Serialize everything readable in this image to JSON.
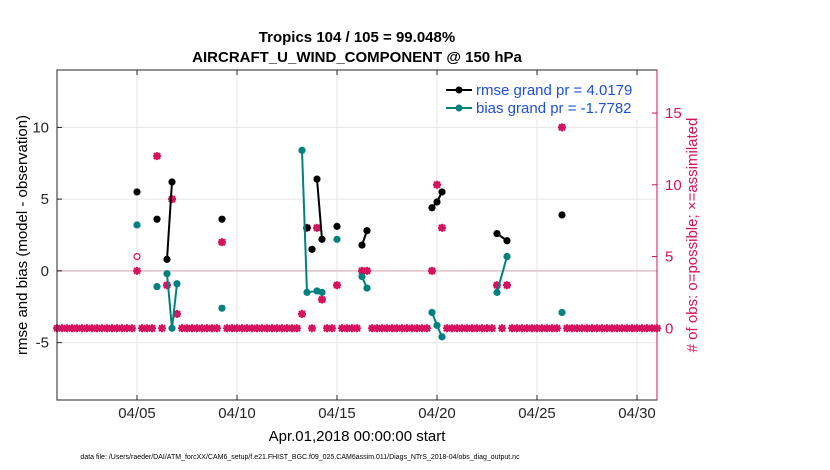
{
  "chart_data": {
    "type": "scatter",
    "title_line1": "Tropics 104 / 105 = 99.048%",
    "title_line2": "AIRCRAFT_U_WIND_COMPONENT @ 150 hPa",
    "xlabel": "Apr.01,2018 00:00:00 start",
    "ylabel_left": "rmse and bias (model - observation)",
    "ylabel_right": "# of obs: o=possible; ×=assimilated",
    "xlim": [
      1,
      31
    ],
    "ylim_left": [
      -9,
      14
    ],
    "ylim_right": [
      -5,
      18
    ],
    "x_ticks": [
      5,
      10,
      15,
      20,
      25,
      30
    ],
    "x_tick_labels": [
      "04/05",
      "04/10",
      "04/15",
      "04/20",
      "04/25",
      "04/30"
    ],
    "y_ticks_left": [
      -5,
      0,
      5,
      10
    ],
    "y_tick_labels_left": [
      "-5",
      "0",
      "5",
      "10"
    ],
    "y_ticks_right": [
      0,
      5,
      10,
      15
    ],
    "y_tick_labels_right": [
      "0",
      "5",
      "10",
      "15"
    ],
    "grid": true,
    "legend": [
      "rmse grand pr = 4.0179",
      "bias grand pr = -1.7782"
    ],
    "legend_position": "top-right",
    "footnote": "data file: /Users/raeder/DAI/ATM_forcXX/CAM6_setup/f.e21.FHIST_BGC.f09_025.CAM6assim.011/Diags_NTrS_2018-04/obs_diag_output.nc",
    "colors": {
      "rmse": "#000000",
      "bias": "#00807f",
      "obs": "#d6135e",
      "zero_line": "#e0c0c8",
      "grid": "#e6e6e6",
      "legend_text": "#1f4fd6"
    },
    "series": [
      {
        "name": "rmse",
        "points": [
          [
            5.0,
            5.5
          ],
          [
            6.0,
            3.6
          ],
          [
            6.5,
            0.8
          ],
          [
            6.75,
            6.2
          ],
          [
            9.25,
            3.6
          ],
          [
            13.5,
            3.0
          ],
          [
            13.75,
            1.5
          ],
          [
            14.0,
            6.4
          ],
          [
            14.25,
            2.2
          ],
          [
            15.0,
            3.1
          ],
          [
            16.25,
            1.8
          ],
          [
            16.5,
            2.8
          ],
          [
            19.75,
            4.4
          ],
          [
            20.0,
            4.8
          ],
          [
            20.25,
            5.5
          ],
          [
            23.0,
            2.6
          ],
          [
            23.5,
            2.1
          ],
          [
            26.25,
            3.9
          ]
        ],
        "segments": [
          [
            [
              6.5,
              0.8
            ],
            [
              6.75,
              6.2
            ]
          ],
          [
            [
              14.0,
              6.4
            ],
            [
              14.25,
              2.2
            ]
          ],
          [
            [
              16.25,
              1.8
            ],
            [
              16.5,
              2.8
            ]
          ],
          [
            [
              19.75,
              4.4
            ],
            [
              20.0,
              4.8
            ],
            [
              20.25,
              5.5
            ]
          ],
          [
            [
              23.0,
              2.6
            ],
            [
              23.5,
              2.1
            ]
          ]
        ]
      },
      {
        "name": "bias",
        "points": [
          [
            5.0,
            3.2
          ],
          [
            6.0,
            -1.1
          ],
          [
            6.5,
            -0.2
          ],
          [
            6.75,
            -4.0
          ],
          [
            7.0,
            -0.9
          ],
          [
            9.25,
            -2.6
          ],
          [
            13.25,
            8.4
          ],
          [
            13.5,
            -1.5
          ],
          [
            14.0,
            -1.4
          ],
          [
            14.25,
            -1.5
          ],
          [
            15.0,
            2.2
          ],
          [
            16.25,
            -0.4
          ],
          [
            16.5,
            -1.2
          ],
          [
            19.75,
            -2.9
          ],
          [
            20.0,
            -3.8
          ],
          [
            20.25,
            -4.6
          ],
          [
            23.0,
            -1.5
          ],
          [
            23.5,
            1.0
          ],
          [
            26.25,
            -2.9
          ]
        ],
        "segments": [
          [
            [
              6.5,
              -0.2
            ],
            [
              6.75,
              -4.0
            ],
            [
              7.0,
              -0.9
            ]
          ],
          [
            [
              13.25,
              8.4
            ],
            [
              13.5,
              -1.5
            ],
            [
              14.0,
              -1.4
            ],
            [
              14.25,
              -1.5
            ]
          ],
          [
            [
              16.25,
              -0.4
            ],
            [
              16.5,
              -1.2
            ]
          ],
          [
            [
              19.75,
              -2.9
            ],
            [
              20.0,
              -3.8
            ],
            [
              20.25,
              -4.6
            ]
          ],
          [
            [
              23.0,
              -1.5
            ],
            [
              23.5,
              1.0
            ]
          ]
        ]
      }
    ],
    "obs_possible_nonzero": [
      [
        5.0,
        5
      ],
      [
        6.0,
        12
      ],
      [
        6.5,
        3
      ],
      [
        6.75,
        9
      ],
      [
        7.0,
        1
      ],
      [
        9.25,
        6
      ],
      [
        13.25,
        1
      ],
      [
        13.5,
        7
      ],
      [
        14.0,
        7
      ],
      [
        14.25,
        2
      ],
      [
        15.0,
        3
      ],
      [
        16.25,
        4
      ],
      [
        16.5,
        4
      ],
      [
        19.75,
        4
      ],
      [
        20.0,
        10
      ],
      [
        20.25,
        7
      ],
      [
        23.0,
        3
      ],
      [
        23.5,
        3
      ],
      [
        26.25,
        14
      ]
    ],
    "obs_assimilated_nonzero": [
      [
        5.0,
        4
      ],
      [
        6.0,
        12
      ],
      [
        6.5,
        3
      ],
      [
        6.75,
        9
      ],
      [
        7.0,
        1
      ],
      [
        9.25,
        6
      ],
      [
        13.25,
        1
      ],
      [
        13.5,
        7
      ],
      [
        14.0,
        7
      ],
      [
        14.25,
        2
      ],
      [
        15.0,
        3
      ],
      [
        16.25,
        4
      ],
      [
        16.5,
        4
      ],
      [
        19.75,
        4
      ],
      [
        20.0,
        10
      ],
      [
        20.25,
        7
      ],
      [
        23.0,
        3
      ],
      [
        23.5,
        3
      ],
      [
        26.25,
        14
      ]
    ],
    "obs_time_step_days": 0.25,
    "obs_time_range": [
      1.0,
      31.0
    ]
  }
}
